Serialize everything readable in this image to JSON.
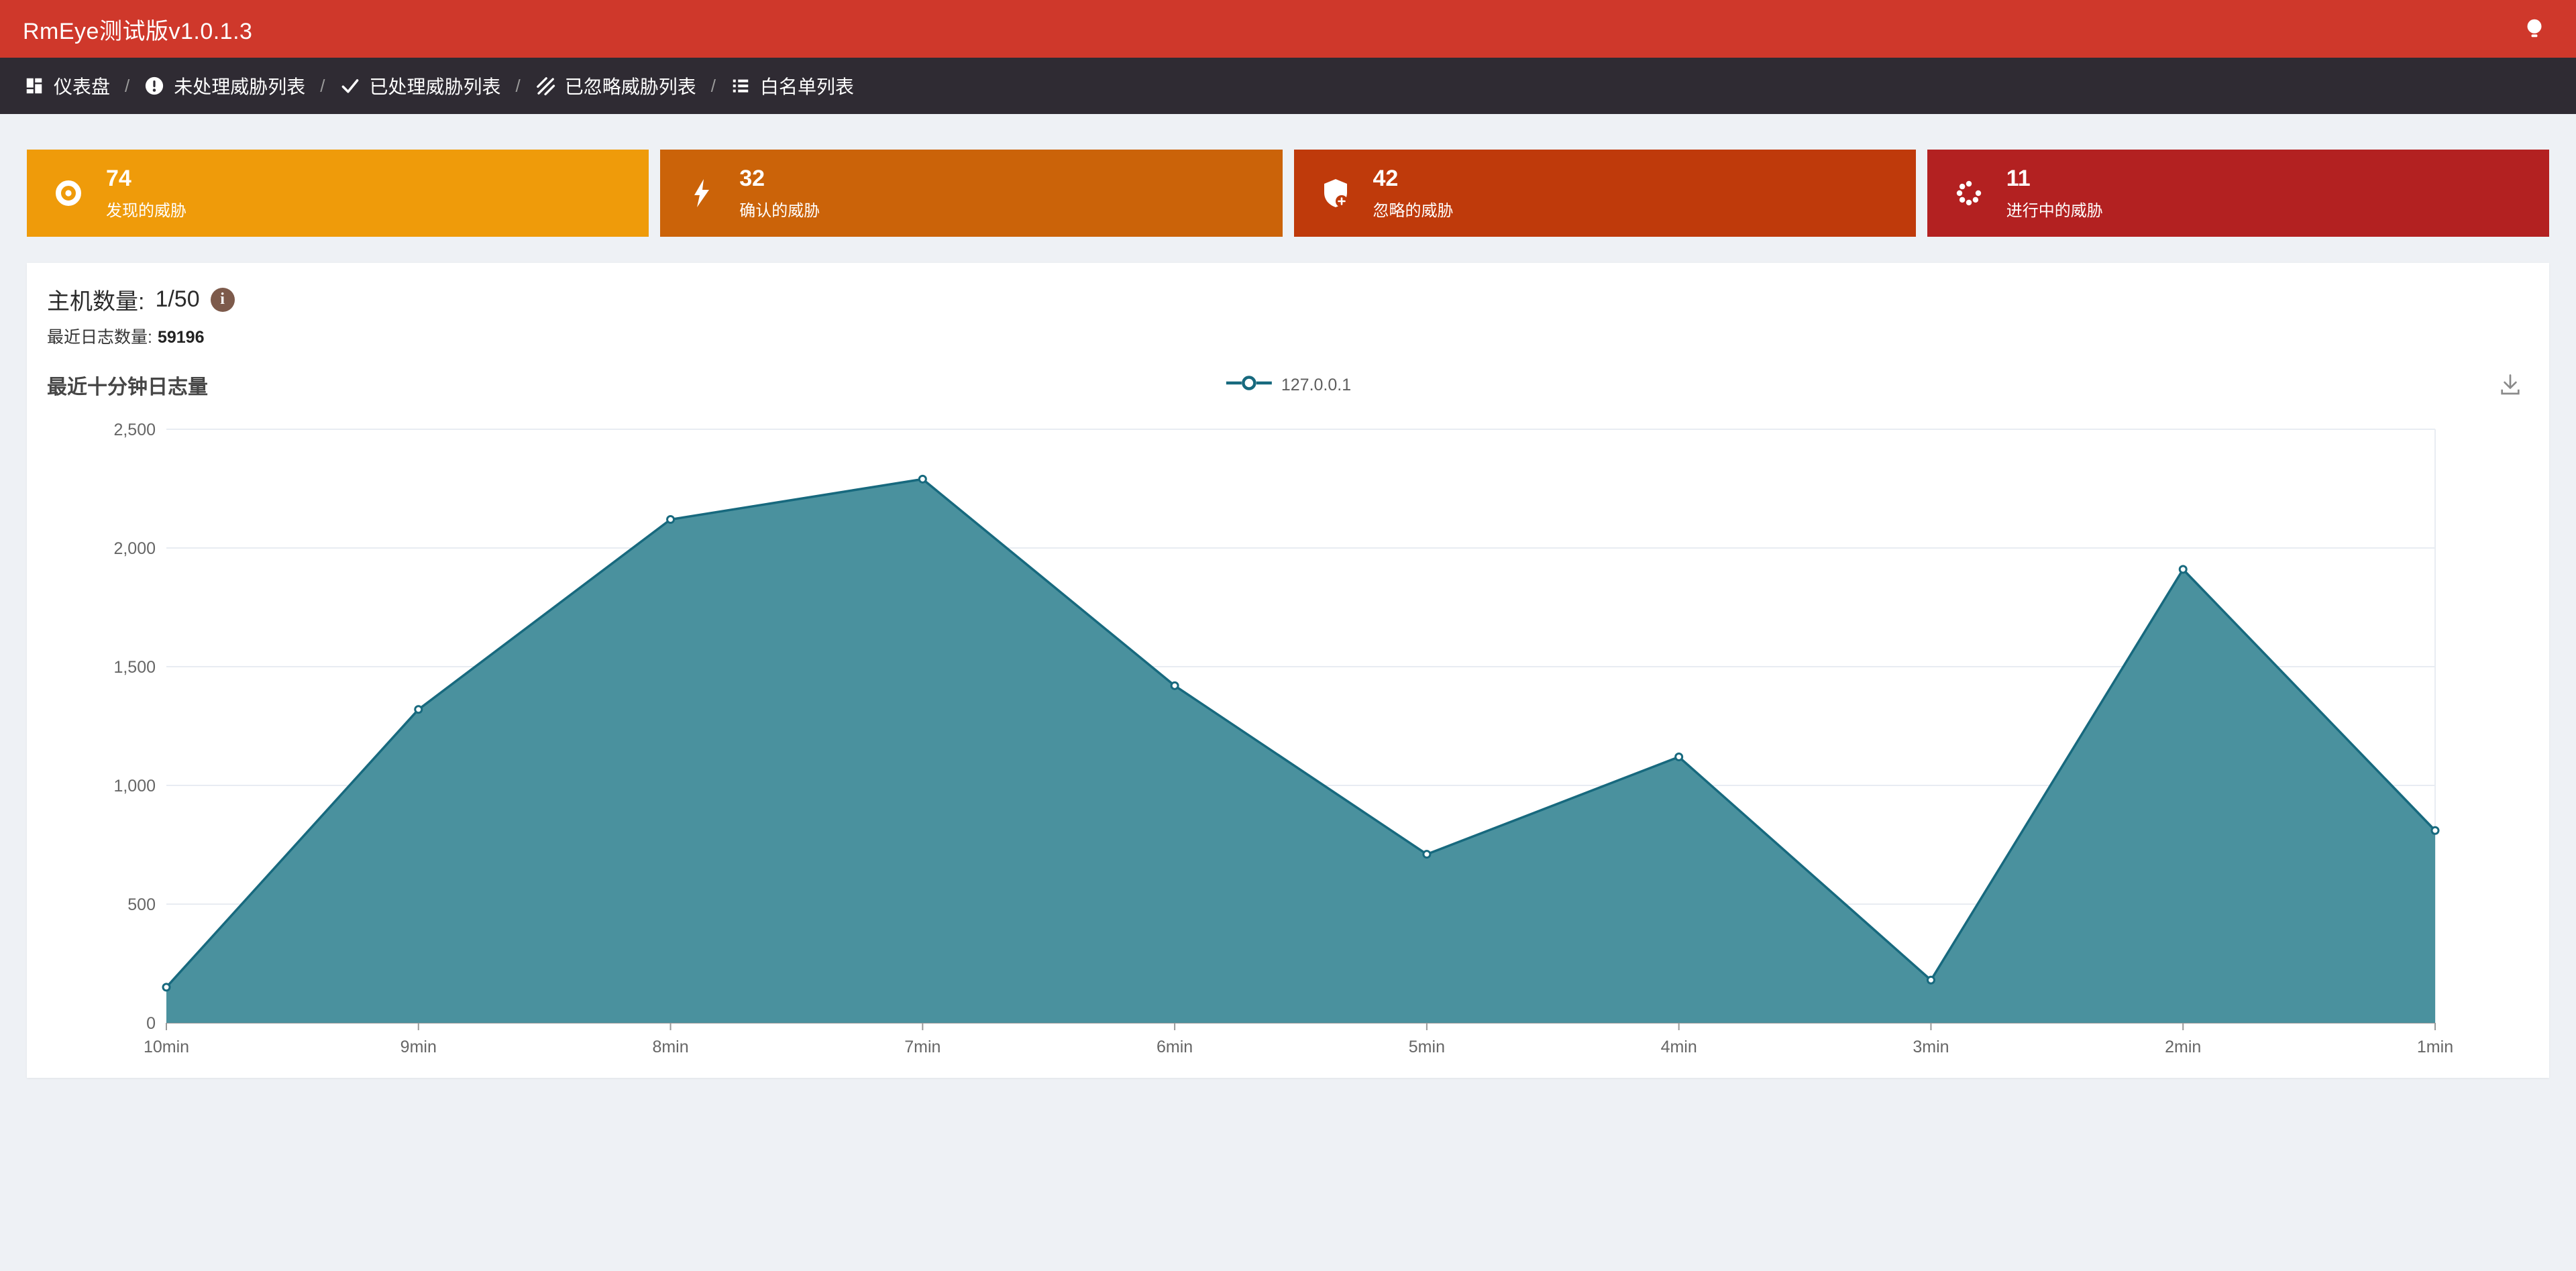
{
  "colors": {
    "header_bg": "#cf382b",
    "navbar_bg": "#2f2b33",
    "page_bg": "#eef1f5",
    "info_icon_bg": "#7d5a4b"
  },
  "header": {
    "title": "RmEye测试版v1.0.1.3"
  },
  "navbar": {
    "separator": "/",
    "items": [
      {
        "icon": "dashboard-icon",
        "label": "仪表盘"
      },
      {
        "icon": "exclamation-circle-icon",
        "label": "未处理威胁列表"
      },
      {
        "icon": "check-icon",
        "label": "已处理威胁列表"
      },
      {
        "icon": "hatch-icon",
        "label": "已忽略威胁列表"
      },
      {
        "icon": "list-icon",
        "label": "白名单列表"
      }
    ]
  },
  "stat_cards": [
    {
      "value": "74",
      "label": "发现的威胁",
      "color": "#ef9b0a",
      "icon": "eye-icon"
    },
    {
      "value": "32",
      "label": "确认的威胁",
      "color": "#cb6309",
      "icon": "lightning-icon"
    },
    {
      "value": "42",
      "label": "忽略的威胁",
      "color": "#bf3a0b",
      "icon": "shield-plus-icon"
    },
    {
      "value": "11",
      "label": "进行中的威胁",
      "color": "#b32121",
      "icon": "spinner-icon"
    }
  ],
  "panel": {
    "host_count": {
      "label": "主机数量:",
      "value": "1/50"
    },
    "recent_logs": {
      "label": "最近日志数量:",
      "value": "59196"
    }
  },
  "chart_data": {
    "type": "area",
    "title": "最近十分钟日志量",
    "xlabel": "",
    "ylabel": "",
    "categories": [
      "10min",
      "9min",
      "8min",
      "7min",
      "6min",
      "5min",
      "4min",
      "3min",
      "2min",
      "1min"
    ],
    "series": [
      {
        "name": "127.0.0.1",
        "values": [
          150,
          1320,
          2120,
          2290,
          1420,
          710,
          1120,
          180,
          1910,
          810
        ]
      }
    ],
    "ylim": [
      0,
      2500
    ],
    "yticks": [
      0,
      500,
      1000,
      1500,
      2000,
      2500
    ],
    "grid": true,
    "legend_position": "top-center",
    "line_color": "#17697e",
    "fill_color": "#4a919e",
    "marker_fill": "#ffffff",
    "grid_color": "#e8ecf2",
    "axis_color": "#999999",
    "label_color": "#666666"
  }
}
